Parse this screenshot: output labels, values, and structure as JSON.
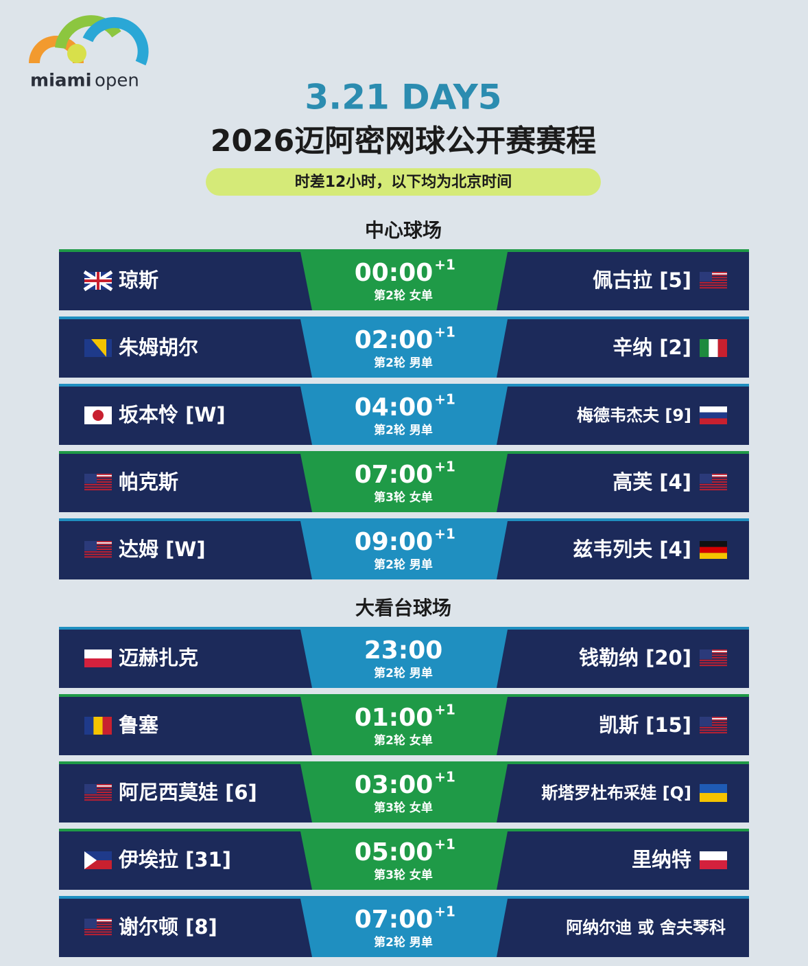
{
  "logo": {
    "name": "miami",
    "suffix": "open"
  },
  "header": {
    "date": "3.21 DAY5",
    "title": "2026迈阿密网球公开赛赛程",
    "note": "时差12小时，以下均为北京时间"
  },
  "courts": [
    {
      "name": "中心球场",
      "matches": [
        {
          "left": "琼斯",
          "time": "00:00",
          "next_day": "+1",
          "round": "第2轮 女单",
          "right": "佩古拉 [5]"
        },
        {
          "left": "朱姆胡尔",
          "time": "02:00",
          "next_day": "+1",
          "round": "第2轮 男单",
          "right": "辛纳 [2]"
        },
        {
          "left": "坂本怜 [W]",
          "time": "04:00",
          "next_day": "+1",
          "round": "第2轮 男单",
          "right": "梅德韦杰夫 [9]"
        },
        {
          "left": "帕克斯",
          "time": "07:00",
          "next_day": "+1",
          "round": "第3轮 女单",
          "right": "高芙 [4]"
        },
        {
          "left": "达姆 [W]",
          "time": "09:00",
          "next_day": "+1",
          "round": "第2轮 男单",
          "right": "兹韦列夫 [4]"
        }
      ]
    },
    {
      "name": "大看台球场",
      "matches": [
        {
          "left": "迈赫扎克",
          "time": "23:00",
          "round": "第2轮 男单",
          "right": "钱勒纳 [20]"
        },
        {
          "left": "鲁塞",
          "time": "01:00",
          "next_day": "+1",
          "round": "第2轮 女单",
          "right": "凯斯 [15]"
        },
        {
          "left": "阿尼西莫娃 [6]",
          "time": "03:00",
          "next_day": "+1",
          "round": "第3轮 女单",
          "right": "斯塔罗杜布采娃 [Q]"
        },
        {
          "left": "伊埃拉 [31]",
          "time": "05:00",
          "next_day": "+1",
          "round": "第3轮 女单",
          "right": "里纳特"
        },
        {
          "left": "谢尔顿 [8]",
          "time": "07:00",
          "next_day": "+1",
          "round": "第2轮 男单",
          "right": "阿纳尔迪 或 舍夫琴科"
        }
      ]
    }
  ]
}
